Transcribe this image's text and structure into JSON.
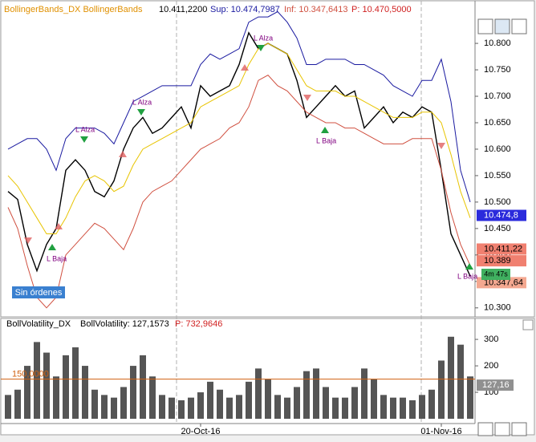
{
  "chart_data": [
    {
      "type": "line",
      "title": "BollingerBands_DX BollingerBands",
      "header_values": [
        "10.411,2200",
        "Sup: 10.474,7987",
        "Inf: 10.347,6413",
        "P: 10.470,5000"
      ],
      "series": [
        {
          "color": "#000000",
          "values": [
            10.52,
            10.505,
            10.42,
            10.37,
            10.42,
            10.45,
            10.56,
            10.58,
            10.56,
            10.52,
            10.51,
            10.54,
            10.6,
            10.64,
            10.66,
            10.63,
            10.64,
            10.66,
            10.68,
            10.64,
            10.72,
            10.7,
            10.71,
            10.72,
            10.76,
            10.82,
            10.79,
            10.8,
            10.79,
            10.78,
            10.73,
            10.66,
            10.68,
            10.7,
            10.72,
            10.7,
            10.71,
            10.64,
            10.66,
            10.68,
            10.65,
            10.67,
            10.66,
            10.68,
            10.67,
            10.56,
            10.44,
            10.4,
            10.36
          ]
        },
        {
          "color": "#1a1aa0",
          "values": [
            10.6,
            10.61,
            10.62,
            10.62,
            10.6,
            10.56,
            10.62,
            10.64,
            10.64,
            10.64,
            10.63,
            10.61,
            10.65,
            10.69,
            10.7,
            10.71,
            10.72,
            10.72,
            10.72,
            10.72,
            10.76,
            10.78,
            10.77,
            10.78,
            10.79,
            10.84,
            10.85,
            10.85,
            10.86,
            10.84,
            10.81,
            10.76,
            10.76,
            10.77,
            10.77,
            10.77,
            10.76,
            10.76,
            10.75,
            10.74,
            10.72,
            10.71,
            10.7,
            10.73,
            10.73,
            10.77,
            10.69,
            10.56,
            10.5
          ]
        },
        {
          "color": "#e8c400",
          "values": [
            10.55,
            10.53,
            10.5,
            10.47,
            10.44,
            10.44,
            10.47,
            10.51,
            10.54,
            10.55,
            10.54,
            10.52,
            10.53,
            10.57,
            10.6,
            10.61,
            10.62,
            10.63,
            10.64,
            10.65,
            10.68,
            10.69,
            10.7,
            10.71,
            10.72,
            10.76,
            10.79,
            10.8,
            10.79,
            10.78,
            10.75,
            10.72,
            10.71,
            10.71,
            10.71,
            10.7,
            10.7,
            10.69,
            10.68,
            10.67,
            10.66,
            10.66,
            10.66,
            10.67,
            10.67,
            10.65,
            10.59,
            10.52,
            10.47
          ]
        },
        {
          "color": "#d05040",
          "values": [
            10.49,
            10.45,
            10.38,
            10.32,
            10.3,
            10.32,
            10.4,
            10.42,
            10.44,
            10.46,
            10.45,
            10.43,
            10.41,
            10.45,
            10.5,
            10.52,
            10.53,
            10.54,
            10.56,
            10.58,
            10.6,
            10.61,
            10.62,
            10.64,
            10.65,
            10.68,
            10.73,
            10.74,
            10.72,
            10.71,
            10.69,
            10.67,
            10.66,
            10.65,
            10.65,
            10.64,
            10.64,
            10.63,
            10.62,
            10.61,
            10.61,
            10.61,
            10.62,
            10.62,
            10.62,
            10.56,
            10.48,
            10.42,
            10.38
          ]
        }
      ],
      "ylim": [
        10.283,
        10.882
      ],
      "yticks": [
        {
          "value": 10.3,
          "label": "10.300"
        },
        {
          "value": 10.35,
          "label": "10.350"
        },
        {
          "value": 10.4,
          "label": "10.400"
        },
        {
          "value": 10.45,
          "label": "10.450"
        },
        {
          "value": 10.5,
          "label": "10.500"
        },
        {
          "value": 10.55,
          "label": "10.550"
        },
        {
          "value": 10.6,
          "label": "10.600"
        },
        {
          "value": 10.65,
          "label": "10.650"
        },
        {
          "value": 10.7,
          "label": "10.700"
        },
        {
          "value": 10.75,
          "label": "10.750"
        },
        {
          "value": 10.8,
          "label": "10.800"
        }
      ],
      "price_labels": [
        {
          "value": 10.4748,
          "label": "10.474,8",
          "color": "#2b2bdc"
        },
        {
          "value": 10.41122,
          "label": "10.411,22",
          "color": "#f08070"
        },
        {
          "value": 10.389,
          "label": "10.389",
          "color": "#f08070"
        },
        {
          "value": 10.34764,
          "label": "10.347,64",
          "color": "#f4a890"
        }
      ],
      "timer": "4m 47s",
      "annotations": [
        "L Alza",
        "L Alza",
        "L Alza",
        "L Baja",
        "L Baja",
        "L Baja"
      ],
      "status": "Sin órdenes"
    },
    {
      "type": "bar",
      "title": "BollVolatility_DX",
      "header_values": [
        "BollVolatility: 127,1573",
        "P: 732,9646"
      ],
      "color": "#555555",
      "values": [
        90,
        110,
        200,
        290,
        250,
        160,
        240,
        270,
        200,
        110,
        90,
        80,
        120,
        200,
        240,
        160,
        90,
        80,
        70,
        80,
        100,
        140,
        110,
        80,
        90,
        140,
        190,
        150,
        90,
        80,
        120,
        180,
        190,
        120,
        80,
        80,
        120,
        190,
        150,
        90,
        80,
        80,
        70,
        90,
        110,
        220,
        310,
        280,
        160
      ],
      "ylim": [
        -18,
        376
      ],
      "yticks": [
        100,
        200,
        300
      ],
      "reference": {
        "value": 150,
        "label": "150,0000",
        "color": "#d06010"
      },
      "current": {
        "value": 127.16,
        "label": "127,16"
      },
      "xticks": [
        {
          "value": 20,
          "label": "20-Oct-16"
        },
        {
          "value": 45,
          "label": "01-Nov-16"
        }
      ]
    }
  ]
}
